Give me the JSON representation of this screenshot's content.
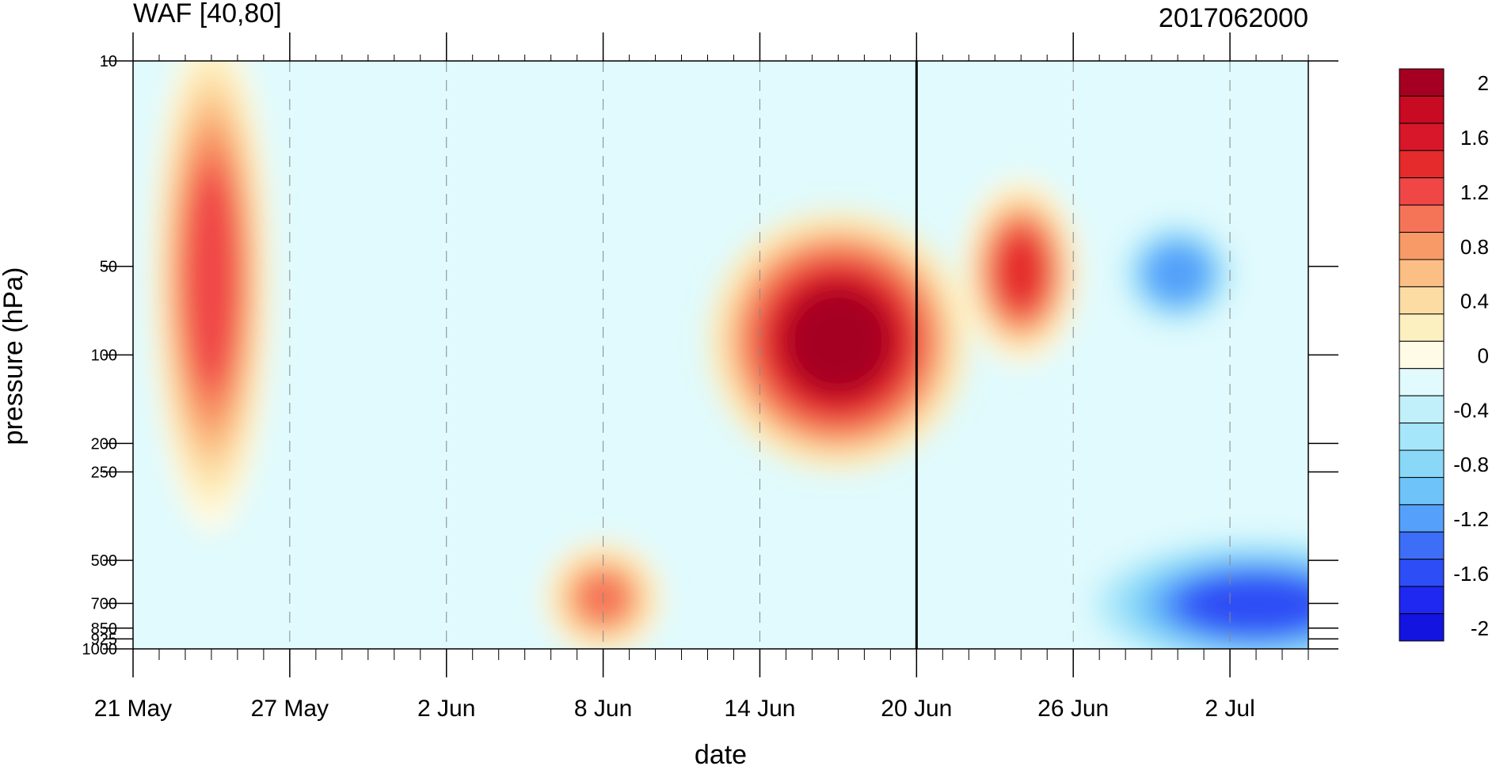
{
  "chart_data": {
    "type": "heatmap",
    "title": "WAF [40,80]",
    "date_label": "2017062000",
    "xlabel": "date",
    "ylabel": "pressure (hPa)",
    "x_ticks": [
      "21 May",
      "27 May",
      "2 Jun",
      "8 Jun",
      "14 Jun",
      "20 Jun",
      "26 Jun",
      "2 Jul"
    ],
    "x_range": [
      "21 May",
      "5 Jul"
    ],
    "y_ticks": [
      "10",
      "50",
      "100",
      "200",
      "250",
      "500",
      "700",
      "850",
      "925",
      "1000"
    ],
    "y_range": [
      1000,
      10
    ],
    "y_scale": "log",
    "marker_line_date": "20 Jun",
    "colorbar": {
      "labels": [
        "2",
        "1.6",
        "1.2",
        "0.8",
        "0.4",
        "0",
        "-0.4",
        "-0.8",
        "-1.2",
        "-1.6",
        "-2"
      ],
      "levels": [
        -2,
        -1.8,
        -1.6,
        -1.4,
        -1.2,
        -1.0,
        -0.8,
        -0.6,
        -0.4,
        -0.2,
        0,
        0.2,
        0.4,
        0.6,
        0.8,
        1.0,
        1.2,
        1.4,
        1.6,
        1.8,
        2.0
      ],
      "colors": [
        "#1414e0",
        "#1e28f0",
        "#2d4ef6",
        "#3c6ef8",
        "#55a0fa",
        "#6ec3f8",
        "#8ad8f8",
        "#a5e6fa",
        "#c1f0fb",
        "#e0fafd",
        "#fffbe6",
        "#fdf0c0",
        "#fddca4",
        "#fbbe84",
        "#f89a68",
        "#f57458",
        "#f04646",
        "#e52b2b",
        "#d8172a",
        "#c80a22",
        "#a50021"
      ]
    },
    "features": [
      {
        "name": "positive-maximum",
        "date": "17 Jun",
        "pressure": [
          40,
          200
        ],
        "peak": 2.0
      },
      {
        "name": "positive-secondary",
        "date": "24 Jun",
        "pressure": [
          30,
          90
        ],
        "peak": 1.4
      },
      {
        "name": "positive-early",
        "date": "24 May",
        "pressure": [
          10,
          300
        ],
        "peak": 1.2
      },
      {
        "name": "positive-june-8",
        "date": "8 Jun",
        "pressure": [
          500,
          900
        ],
        "peak": 1.0
      },
      {
        "name": "negative-early-july",
        "date": "30 Jun",
        "pressure": [
          40,
          70
        ],
        "peak": -1.2
      },
      {
        "name": "negative-lower",
        "date": "3 Jul",
        "pressure": [
          500,
          1000
        ],
        "peak": -1.6
      }
    ]
  }
}
